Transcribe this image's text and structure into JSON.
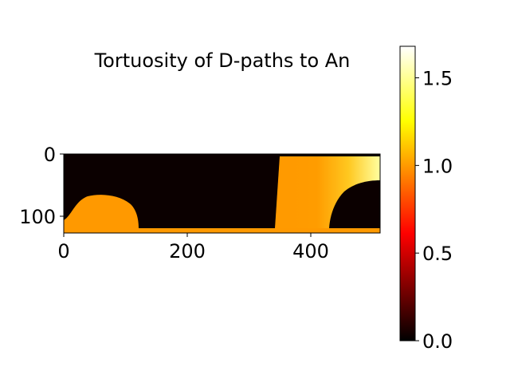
{
  "chart_data": {
    "type": "heatmap",
    "title": "Tortuosity of D-paths to An",
    "colormap": "hot",
    "x_ticks": [
      0,
      200,
      400
    ],
    "y_ticks": [
      0,
      100
    ],
    "x_extent": [
      0,
      512
    ],
    "y_extent": [
      0,
      128
    ],
    "colorbar": {
      "vmin": 0.0,
      "vmax": 1.68,
      "ticks": [
        "0.0",
        "0.5",
        "1.0",
        "1.5"
      ],
      "tick_values": [
        0.0,
        0.5,
        1.0,
        1.5
      ]
    },
    "regions": [
      {
        "name": "background",
        "value": 0.0
      },
      {
        "name": "left-dome",
        "value": 1.05
      },
      {
        "name": "bottom-strip",
        "value": 1.05
      },
      {
        "name": "right-block",
        "value": 1.05,
        "gradient_to": 1.68
      },
      {
        "name": "right-dome",
        "value": 0.0
      }
    ]
  }
}
